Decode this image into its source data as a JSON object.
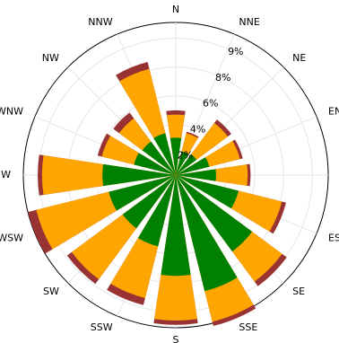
{
  "chart_data": {
    "type": "windrose",
    "title": "",
    "directions": [
      "N",
      "NNE",
      "NE",
      "ENE",
      "E",
      "ESE",
      "SE",
      "SSE",
      "S",
      "SSW",
      "SW",
      "WSW",
      "W",
      "WNW",
      "NW",
      "NNW"
    ],
    "radial_ticks": [
      "2%",
      "4%",
      "6%",
      "8%",
      "9%"
    ],
    "radial_max": 10.6,
    "series": [
      {
        "color": "#008000",
        "values": [
          2.6,
          1.7,
          1.8,
          2.4,
          2.8,
          4.5,
          6.6,
          8.3,
          7.0,
          5.1,
          4.6,
          4.8,
          5.1,
          3.0,
          2.9,
          3.0
        ]
      },
      {
        "color": "#FFA500",
        "values": [
          4.2,
          3.0,
          4.5,
          4.6,
          5.0,
          7.6,
          9.2,
          10.5,
          10.1,
          8.8,
          9.0,
          10.0,
          9.3,
          5.3,
          4.9,
          7.6
        ]
      },
      {
        "color": "#993333",
        "values": [
          4.5,
          3.1,
          4.8,
          4.8,
          5.2,
          7.9,
          9.6,
          10.8,
          10.4,
          9.3,
          9.4,
          10.6,
          9.6,
          5.6,
          5.4,
          8.1
        ]
      }
    ],
    "grid": true
  }
}
